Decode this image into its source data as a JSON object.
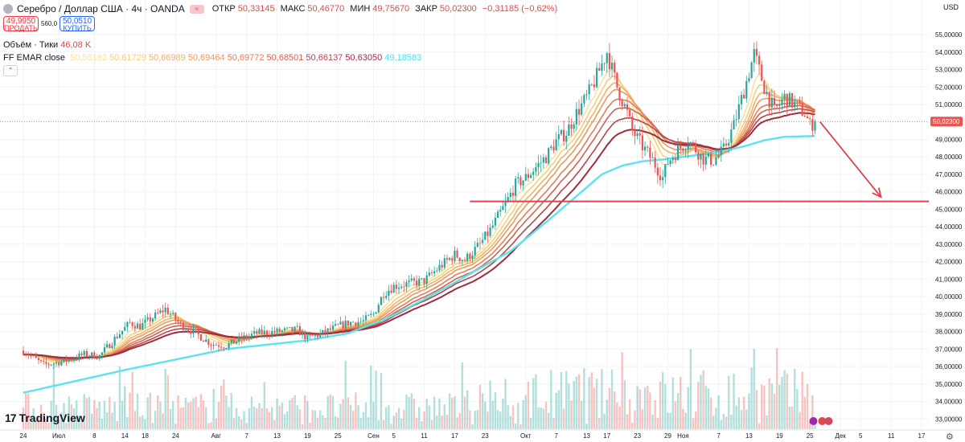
{
  "header": {
    "symbol": "Серебро / Доллар США · 4ч · OANDA",
    "open_label": "ОТКР",
    "open": "50,33145",
    "high_label": "МАКС",
    "high": "50,46770",
    "low_label": "МИН",
    "low": "49,75670",
    "close_label": "ЗАКР",
    "close": "50,02300",
    "change": "−0,31185 (−0,62%)",
    "hide_glyph": "≈"
  },
  "trade": {
    "sell_price": "49,9950",
    "sell_label": "ПРОДАТЬ",
    "spread": "560,0",
    "buy_price": "50,0510",
    "buy_label": "КУПИТЬ"
  },
  "volume": {
    "label": "Объём · Тики",
    "value": "46,08 K"
  },
  "ema": {
    "label": "FF EMAR close",
    "values": [
      "50,55162",
      "50,61729",
      "50,66989",
      "50,69464",
      "50,69772",
      "50,68501",
      "50,66137",
      "50,63050",
      "49,18583"
    ],
    "colors": [
      "#f6e3a1",
      "#f3cf7e",
      "#f0b36a",
      "#eb9a5f",
      "#e07f57",
      "#cf6452",
      "#b8474a",
      "#9c2f3e",
      "#56e0ef"
    ]
  },
  "currency": "USD",
  "last_price_label": "50,02300",
  "logo_text": "TradingView",
  "colors": {
    "bull": "#26a69a",
    "bear": "#ef5350",
    "level": "#e04050",
    "ema_slow": "#5de3ef"
  },
  "chart_data": {
    "type": "candlestick",
    "title": "Серебро / Доллар США · 4ч · OANDA",
    "timeframe": "4ч",
    "y_ticks": [
      33,
      34,
      35,
      36,
      37,
      38,
      39,
      40,
      41,
      42,
      43,
      44,
      45,
      46,
      47,
      48,
      49,
      50,
      51,
      52,
      53,
      54,
      55
    ],
    "y_tick_labels": [
      "33,00000",
      "34,00000",
      "35,00000",
      "36,00000",
      "37,00000",
      "38,00000",
      "39,00000",
      "40,00000",
      "41,00000",
      "42,00000",
      "43,00000",
      "44,00000",
      "45,00000",
      "46,00000",
      "47,00000",
      "48,00000",
      "49,00000",
      "50,00000",
      "51,00000",
      "52,00000",
      "53,00000",
      "54,00000",
      "55,00000"
    ],
    "ylim": [
      32.6,
      55.6
    ],
    "x_labels": [
      {
        "label": "24",
        "day": 0
      },
      {
        "label": "Июл",
        "day": 7
      },
      {
        "label": "8",
        "day": 14
      },
      {
        "label": "14",
        "day": 20
      },
      {
        "label": "18",
        "day": 24
      },
      {
        "label": "24",
        "day": 30
      },
      {
        "label": "Авг",
        "day": 38
      },
      {
        "label": "7",
        "day": 44
      },
      {
        "label": "13",
        "day": 50
      },
      {
        "label": "19",
        "day": 56
      },
      {
        "label": "25",
        "day": 62
      },
      {
        "label": "Сен",
        "day": 69
      },
      {
        "label": "5",
        "day": 73
      },
      {
        "label": "11",
        "day": 79
      },
      {
        "label": "17",
        "day": 85
      },
      {
        "label": "23",
        "day": 91
      },
      {
        "label": "Окт",
        "day": 99
      },
      {
        "label": "7",
        "day": 105
      },
      {
        "label": "13",
        "day": 111
      },
      {
        "label": "17",
        "day": 115
      },
      {
        "label": "23",
        "day": 121
      },
      {
        "label": "29",
        "day": 127
      },
      {
        "label": "Ноя",
        "day": 130
      },
      {
        "label": "7",
        "day": 137
      },
      {
        "label": "13",
        "day": 143
      },
      {
        "label": "19",
        "day": 149
      },
      {
        "label": "25",
        "day": 155
      },
      {
        "label": "Дек",
        "day": 161
      },
      {
        "label": "5",
        "day": 165
      },
      {
        "label": "11",
        "day": 171
      },
      {
        "label": "17",
        "day": 177
      }
    ],
    "price_path": [
      [
        0,
        36.9
      ],
      [
        4,
        36.1
      ],
      [
        8,
        36.3
      ],
      [
        12,
        36.7
      ],
      [
        15,
        36.6
      ],
      [
        18,
        37.6
      ],
      [
        21,
        38.5
      ],
      [
        23,
        38.3
      ],
      [
        26,
        38.9
      ],
      [
        28,
        39.3
      ],
      [
        31,
        38.4
      ],
      [
        34,
        37.9
      ],
      [
        37,
        37.3
      ],
      [
        40,
        37.2
      ],
      [
        43,
        37.6
      ],
      [
        46,
        37.9
      ],
      [
        50,
        38.0
      ],
      [
        54,
        38.1
      ],
      [
        56,
        37.6
      ],
      [
        59,
        37.9
      ],
      [
        62,
        38.3
      ],
      [
        64,
        38.5
      ],
      [
        67,
        38.6
      ],
      [
        69,
        39.0
      ],
      [
        71,
        40.2
      ],
      [
        73,
        40.6
      ],
      [
        75,
        40.7
      ],
      [
        79,
        40.9
      ],
      [
        82,
        41.7
      ],
      [
        85,
        42.4
      ],
      [
        87,
        42.1
      ],
      [
        90,
        43.0
      ],
      [
        92,
        43.8
      ],
      [
        95,
        45.3
      ],
      [
        97,
        46.4
      ],
      [
        99,
        46.8
      ],
      [
        101,
        47.4
      ],
      [
        103,
        48.0
      ],
      [
        105,
        48.9
      ],
      [
        107,
        49.4
      ],
      [
        109,
        50.5
      ],
      [
        111,
        51.4
      ],
      [
        113,
        52.6
      ],
      [
        115,
        54.0
      ],
      [
        117,
        52.0
      ],
      [
        119,
        50.5
      ],
      [
        120,
        49.5
      ],
      [
        122,
        48.6
      ],
      [
        124,
        47.8
      ],
      [
        126,
        46.8
      ],
      [
        127,
        47.7
      ],
      [
        129,
        48.4
      ],
      [
        131,
        48.9
      ],
      [
        132,
        48.6
      ],
      [
        134,
        47.9
      ],
      [
        136,
        47.8
      ],
      [
        138,
        48.4
      ],
      [
        140,
        49.8
      ],
      [
        142,
        51.8
      ],
      [
        144,
        53.9
      ],
      [
        146,
        52.0
      ],
      [
        148,
        50.6
      ],
      [
        150,
        51.4
      ],
      [
        152,
        51.0
      ],
      [
        154,
        50.5
      ],
      [
        155,
        49.8
      ],
      [
        156,
        50.02
      ]
    ],
    "ema_slow_path": [
      [
        0,
        34.5
      ],
      [
        20,
        35.8
      ],
      [
        40,
        37.0
      ],
      [
        56,
        37.5
      ],
      [
        64,
        37.9
      ],
      [
        72,
        38.8
      ],
      [
        80,
        40.0
      ],
      [
        88,
        41.3
      ],
      [
        96,
        42.6
      ],
      [
        104,
        44.5
      ],
      [
        110,
        46.0
      ],
      [
        114,
        47.0
      ],
      [
        118,
        47.5
      ],
      [
        122,
        47.75
      ],
      [
        126,
        47.85
      ],
      [
        130,
        48.0
      ],
      [
        134,
        48.15
      ],
      [
        138,
        48.35
      ],
      [
        142,
        48.6
      ],
      [
        146,
        48.95
      ],
      [
        150,
        49.15
      ],
      [
        156,
        49.19
      ]
    ],
    "resistance_level": {
      "value": 45.45,
      "from_day": 88,
      "to_day": 180
    },
    "projection_arrow": {
      "from": [
        157,
        50.0
      ],
      "to": [
        169,
        45.7
      ]
    },
    "last_price": 50.023
  }
}
